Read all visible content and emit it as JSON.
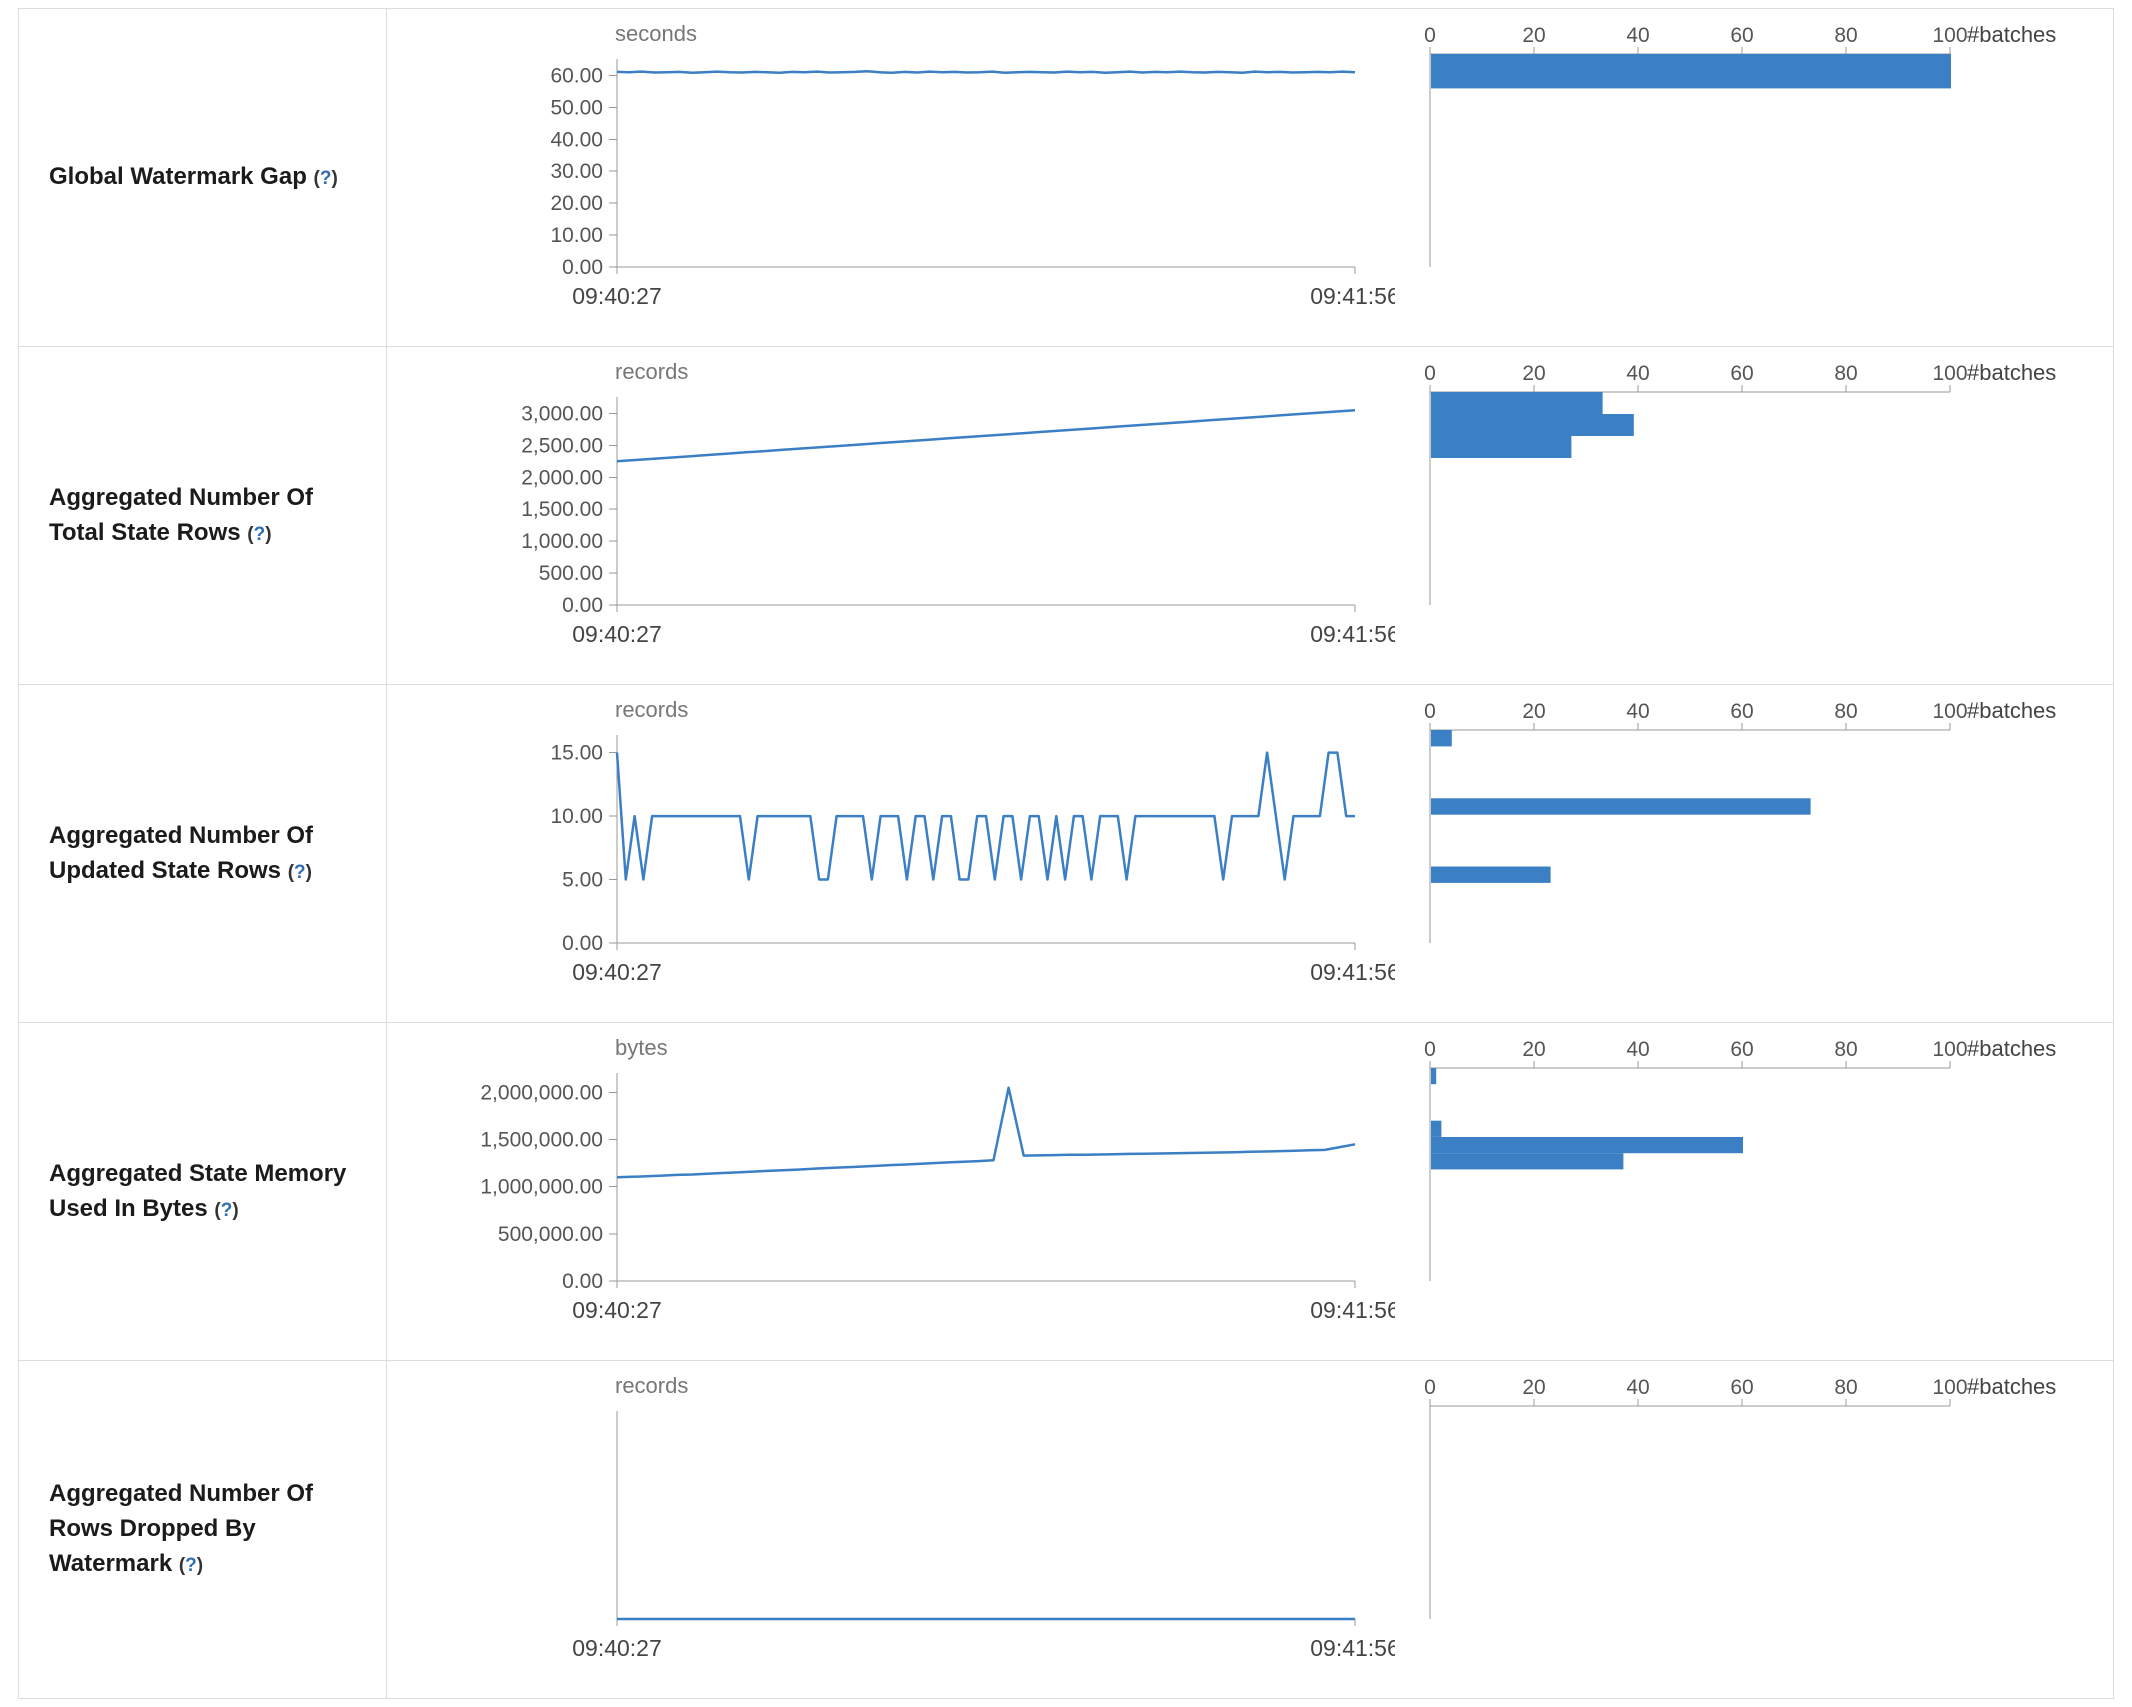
{
  "colors": {
    "accent": "#3b7fc4",
    "axis": "#999999",
    "tick_text": "#555555",
    "label_text": "#1b1b1b",
    "help": "#2f6eb3",
    "border": "#dddddd"
  },
  "help_marker": {
    "open": "(",
    "q": "?",
    "close": ")"
  },
  "rows": [
    {
      "label": "Global Watermark Gap"
    },
    {
      "label": "Aggregated Number Of Total State Rows"
    },
    {
      "label": "Aggregated Number Of Updated State Rows"
    },
    {
      "label": "Aggregated State Memory Used In Bytes"
    },
    {
      "label": "Aggregated Number Of Rows Dropped By Watermark"
    }
  ],
  "chart_data": [
    {
      "timeline": {
        "type": "line",
        "unit": "seconds",
        "x_range": [
          "09:40:27",
          "09:41:56"
        ],
        "ymax": 62,
        "yticks": [
          {
            "value": 60,
            "label": "60.00"
          },
          {
            "value": 50,
            "label": "50.00"
          },
          {
            "value": 40,
            "label": "40.00"
          },
          {
            "value": 30,
            "label": "30.00"
          },
          {
            "value": 20,
            "label": "20.00"
          },
          {
            "value": 10,
            "label": "10.00"
          },
          {
            "value": 0,
            "label": "0.00"
          }
        ],
        "values": [
          61.1,
          61.0,
          61.2,
          60.9,
          61.0,
          61.1,
          60.8,
          61.0,
          61.2,
          61.0,
          60.9,
          61.1,
          61.0,
          60.8,
          61.1,
          61.0,
          61.2,
          60.9,
          61.0,
          61.1,
          61.3,
          61.0,
          60.8,
          61.1,
          60.9,
          61.2,
          61.0,
          61.1,
          60.9,
          61.0,
          61.2,
          60.8,
          61.0,
          61.1,
          61.0,
          60.9,
          61.2,
          61.0,
          61.1,
          60.8,
          61.0,
          61.2,
          60.9,
          61.1,
          61.0,
          61.2,
          61.0,
          60.9,
          61.1,
          61.0,
          60.8,
          61.2,
          61.0,
          61.1,
          60.9,
          61.0,
          61.1,
          61.0,
          61.2,
          61.0
        ]
      },
      "histogram": {
        "type": "bar",
        "orientation": "horizontal",
        "xlabel": "#batches",
        "xmax": 100,
        "xticks": [
          0,
          20,
          40,
          60,
          80,
          100
        ],
        "bins": [
          {
            "lo": 52,
            "hi": 62,
            "count": 100
          }
        ]
      }
    },
    {
      "timeline": {
        "type": "line",
        "unit": "records",
        "x_range": [
          "09:40:27",
          "09:41:56"
        ],
        "ymax": 3100,
        "yticks": [
          {
            "value": 3000,
            "label": "3,000.00"
          },
          {
            "value": 2500,
            "label": "2,500.00"
          },
          {
            "value": 2000,
            "label": "2,000.00"
          },
          {
            "value": 1500,
            "label": "1,500.00"
          },
          {
            "value": 1000,
            "label": "1,000.00"
          },
          {
            "value": 500,
            "label": "500.00"
          },
          {
            "value": 0,
            "label": "0.00"
          }
        ],
        "values": [
          2250,
          2270,
          2290,
          2310,
          2330,
          2350,
          2370,
          2390,
          2410,
          2430,
          2450,
          2470,
          2490,
          2510,
          2530,
          2550,
          2570,
          2590,
          2610,
          2630,
          2650,
          2670,
          2690,
          2710,
          2730,
          2750,
          2770,
          2790,
          2810,
          2830,
          2850,
          2870,
          2890,
          2910,
          2930,
          2950,
          2970,
          2990,
          3010,
          3030,
          3050
        ]
      },
      "histogram": {
        "type": "bar",
        "orientation": "horizontal",
        "xlabel": "#batches",
        "xmax": 100,
        "xticks": [
          0,
          20,
          40,
          60,
          80,
          100
        ],
        "bins": [
          {
            "lo": 2780,
            "hi": 3100,
            "count": 33
          },
          {
            "lo": 2460,
            "hi": 2780,
            "count": 39
          },
          {
            "lo": 2140,
            "hi": 2460,
            "count": 27
          }
        ]
      }
    },
    {
      "timeline": {
        "type": "line",
        "unit": "records",
        "x_range": [
          "09:40:27",
          "09:41:56"
        ],
        "ymax": 15.6,
        "yticks": [
          {
            "value": 15,
            "label": "15.00"
          },
          {
            "value": 10,
            "label": "10.00"
          },
          {
            "value": 5,
            "label": "5.00"
          },
          {
            "value": 0,
            "label": "0.00"
          }
        ],
        "values": [
          15,
          5,
          10,
          5,
          10,
          10,
          10,
          10,
          10,
          10,
          10,
          10,
          10,
          10,
          10,
          5,
          10,
          10,
          10,
          10,
          10,
          10,
          10,
          5,
          5,
          10,
          10,
          10,
          10,
          5,
          10,
          10,
          10,
          5,
          10,
          10,
          5,
          10,
          10,
          5,
          5,
          10,
          10,
          5,
          10,
          10,
          5,
          10,
          10,
          5,
          10,
          5,
          10,
          10,
          5,
          10,
          10,
          10,
          5,
          10,
          10,
          10,
          10,
          10,
          10,
          10,
          10,
          10,
          10,
          5,
          10,
          10,
          10,
          10,
          15,
          10,
          5,
          10,
          10,
          10,
          10,
          15,
          15,
          10,
          10
        ]
      },
      "histogram": {
        "type": "bar",
        "orientation": "horizontal",
        "xlabel": "#batches",
        "xmax": 100,
        "xticks": [
          0,
          20,
          40,
          60,
          80,
          100
        ],
        "bins": [
          {
            "lo": 14.4,
            "hi": 15.6,
            "count": 4
          },
          {
            "lo": 9.4,
            "hi": 10.6,
            "count": 73
          },
          {
            "lo": 4.4,
            "hi": 5.6,
            "count": 23
          }
        ]
      }
    },
    {
      "timeline": {
        "type": "line",
        "unit": "bytes",
        "x_range": [
          "09:40:27",
          "09:41:56"
        ],
        "ymax": 2100000,
        "yticks": [
          {
            "value": 2000000,
            "label": "2,000,000.00"
          },
          {
            "value": 1500000,
            "label": "1,500,000.00"
          },
          {
            "value": 1000000,
            "label": "1,000,000.00"
          },
          {
            "value": 500000,
            "label": "500,000.00"
          },
          {
            "value": 0,
            "label": "0.00"
          }
        ],
        "values": [
          1100000,
          1105000,
          1110000,
          1118000,
          1125000,
          1130000,
          1138000,
          1145000,
          1152000,
          1160000,
          1168000,
          1175000,
          1182000,
          1190000,
          1198000,
          1205000,
          1212000,
          1220000,
          1228000,
          1235000,
          1242000,
          1250000,
          1258000,
          1265000,
          1272000,
          1280000,
          2050000,
          1330000,
          1332000,
          1335000,
          1338000,
          1340000,
          1342000,
          1345000,
          1348000,
          1350000,
          1352000,
          1355000,
          1358000,
          1360000,
          1363000,
          1366000,
          1370000,
          1374000,
          1378000,
          1382000,
          1386000,
          1390000,
          1420000,
          1450000
        ]
      },
      "histogram": {
        "type": "bar",
        "orientation": "horizontal",
        "xlabel": "#batches",
        "xmax": 100,
        "xticks": [
          0,
          20,
          40,
          60,
          80,
          100
        ],
        "bins": [
          {
            "lo": 1940000,
            "hi": 2100000,
            "count": 1
          },
          {
            "lo": 1420000,
            "hi": 1580000,
            "count": 2
          },
          {
            "lo": 1260000,
            "hi": 1420000,
            "count": 60
          },
          {
            "lo": 1100000,
            "hi": 1260000,
            "count": 37
          }
        ]
      }
    },
    {
      "timeline": {
        "type": "line",
        "unit": "records",
        "x_range": [
          "09:40:27",
          "09:41:56"
        ],
        "ymax": 1,
        "yticks": [],
        "values": [
          0,
          0,
          0,
          0,
          0,
          0,
          0,
          0,
          0,
          0,
          0,
          0,
          0,
          0,
          0,
          0,
          0,
          0,
          0,
          0
        ]
      },
      "histogram": {
        "type": "bar",
        "orientation": "horizontal",
        "xlabel": "#batches",
        "xmax": 100,
        "xticks": [
          0,
          20,
          40,
          60,
          80,
          100
        ],
        "bins": []
      }
    }
  ]
}
